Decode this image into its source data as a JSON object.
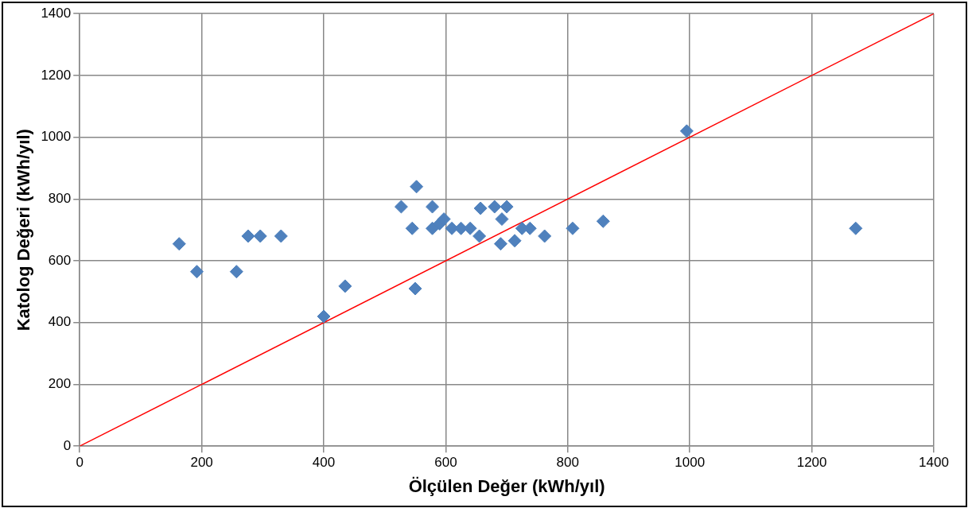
{
  "chart_data": {
    "type": "scatter",
    "xlabel": "Ölçülen Değer (kWh/yıl)",
    "ylabel": "Katolog Değeri (kWh/yıl)",
    "xlim": [
      0,
      1400
    ],
    "xticks": [
      0,
      200,
      400,
      600,
      800,
      1000,
      1200,
      1400
    ],
    "ylim": [
      0,
      1400
    ],
    "yticks": [
      0,
      200,
      400,
      600,
      800,
      1000,
      1200,
      1400
    ],
    "grid": true,
    "legend": false,
    "marker": "diamond",
    "series": [
      {
        "type": "scatter",
        "color": "#4f81bd",
        "x": [
          163,
          192,
          257,
          276,
          296,
          330,
          400,
          435,
          527,
          545,
          550,
          552,
          578,
          578,
          590,
          597,
          610,
          625,
          640,
          650,
          655,
          657,
          680,
          690,
          692,
          700,
          713,
          725,
          738,
          762,
          808,
          858,
          995,
          1272
        ],
        "values": [
          655,
          565,
          565,
          680,
          680,
          680,
          420,
          518,
          775,
          705,
          510,
          840,
          775,
          705,
          720,
          735,
          705,
          705,
          705,
          null,
          680,
          770,
          775,
          655,
          735,
          775,
          665,
          705,
          705,
          680,
          705,
          728,
          1020,
          705
        ]
      },
      {
        "type": "line",
        "color": "#ff0000",
        "x": [
          0,
          1400
        ],
        "values": [
          0,
          1400
        ],
        "marker": "none"
      }
    ]
  }
}
